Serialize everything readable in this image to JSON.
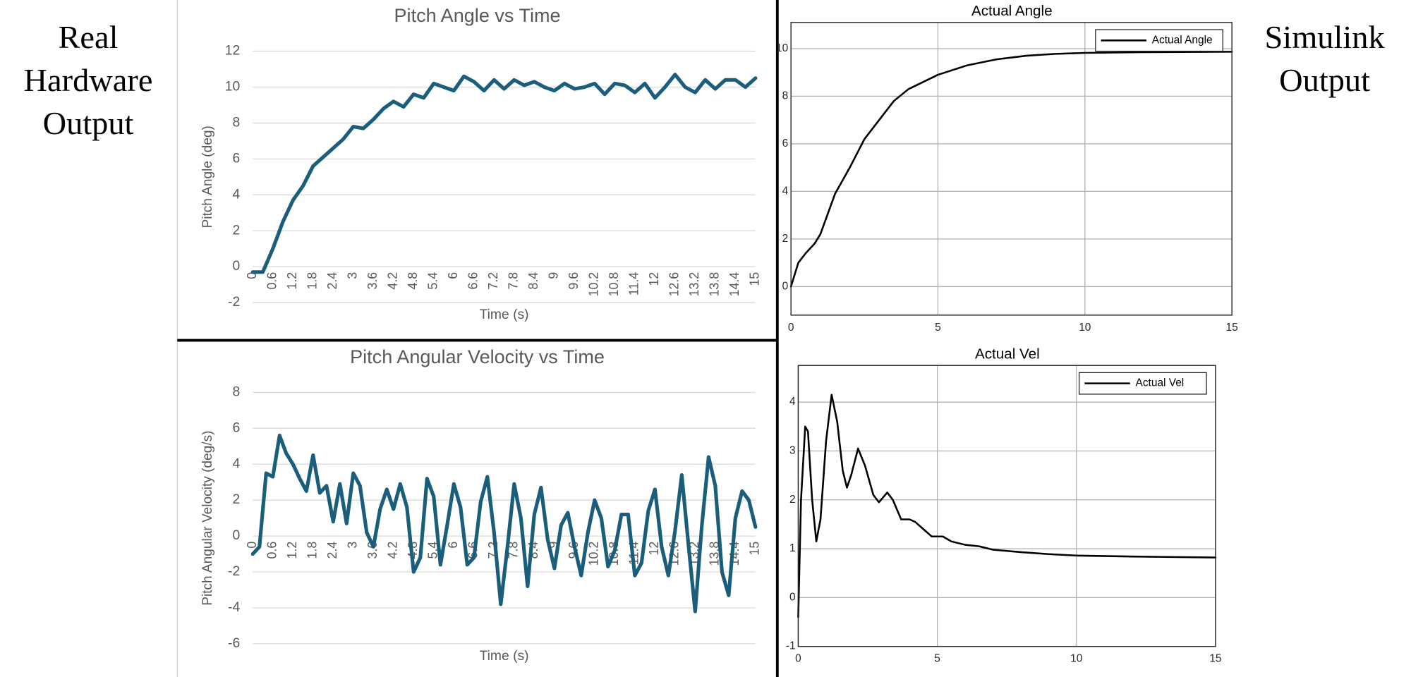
{
  "side_labels": {
    "left": [
      "Real",
      "Hardware",
      "Output"
    ],
    "right": [
      "Simulink",
      "Output"
    ]
  },
  "chart_data": [
    {
      "type": "line",
      "title": "Pitch Angle vs Time",
      "x_label": "Time (s)",
      "y_label": "Pitch Angle (deg)",
      "color": "#1b5e7b",
      "grid": true,
      "xlim": [
        0,
        15
      ],
      "xticks": [
        0,
        0.6,
        1.2,
        1.8,
        2.4,
        3,
        3.6,
        4.2,
        4.8,
        5.4,
        6,
        6.6,
        7.2,
        7.8,
        8.4,
        9,
        9.6,
        10.2,
        10.8,
        11.4,
        12,
        12.6,
        13.2,
        13.8,
        14.4,
        15
      ],
      "ylim": [
        -2,
        12
      ],
      "yticks": [
        -2,
        0,
        2,
        4,
        6,
        8,
        10,
        12
      ],
      "x": [
        0,
        0.3,
        0.6,
        0.9,
        1.2,
        1.5,
        1.8,
        2.1,
        2.4,
        2.7,
        3,
        3.3,
        3.6,
        3.9,
        4.2,
        4.5,
        4.8,
        5.1,
        5.4,
        5.7,
        6,
        6.3,
        6.6,
        6.9,
        7.2,
        7.5,
        7.8,
        8.1,
        8.4,
        8.7,
        9,
        9.3,
        9.6,
        9.9,
        10.2,
        10.5,
        10.8,
        11.1,
        11.4,
        11.7,
        12,
        12.3,
        12.6,
        12.9,
        13.2,
        13.5,
        13.8,
        14.1,
        14.4,
        14.7,
        15
      ],
      "values": [
        -0.3,
        -0.3,
        1.0,
        2.5,
        3.7,
        4.5,
        5.6,
        6.1,
        6.6,
        7.1,
        7.8,
        7.7,
        8.2,
        8.8,
        9.2,
        8.9,
        9.6,
        9.4,
        10.2,
        10.0,
        9.8,
        10.6,
        10.3,
        9.8,
        10.4,
        9.9,
        10.4,
        10.1,
        10.3,
        10.0,
        9.8,
        10.2,
        9.9,
        10.0,
        10.2,
        9.6,
        10.2,
        10.1,
        9.7,
        10.2,
        9.4,
        10.0,
        10.7,
        10.0,
        9.7,
        10.4,
        9.9,
        10.4,
        10.4,
        10.0,
        10.5
      ]
    },
    {
      "type": "line",
      "title": "Pitch Angular Velocity vs Time",
      "x_label": "Time (s)",
      "y_label": "Pitch Angular Velocity (deg/s)",
      "color": "#1b5e7b",
      "grid": true,
      "xlim": [
        0,
        15
      ],
      "xticks": [
        0,
        0.6,
        1.2,
        1.8,
        2.4,
        3,
        3.6,
        4.2,
        4.8,
        5.4,
        6,
        6.6,
        7.2,
        7.8,
        8.4,
        9,
        9.6,
        10.2,
        10.8,
        11.4,
        12,
        12.6,
        13.2,
        13.8,
        14.4,
        15
      ],
      "ylim": [
        -6,
        8
      ],
      "yticks": [
        -6,
        -4,
        -2,
        0,
        2,
        4,
        6,
        8
      ],
      "x": [
        0,
        0.2,
        0.4,
        0.6,
        0.8,
        1,
        1.2,
        1.4,
        1.6,
        1.8,
        2,
        2.2,
        2.4,
        2.6,
        2.8,
        3,
        3.2,
        3.4,
        3.6,
        3.8,
        4,
        4.2,
        4.4,
        4.6,
        4.8,
        5,
        5.2,
        5.4,
        5.6,
        5.8,
        6,
        6.2,
        6.4,
        6.6,
        6.8,
        7,
        7.2,
        7.4,
        7.6,
        7.8,
        8,
        8.2,
        8.4,
        8.6,
        8.8,
        9,
        9.2,
        9.4,
        9.6,
        9.8,
        10,
        10.2,
        10.4,
        10.6,
        10.8,
        11,
        11.2,
        11.4,
        11.6,
        11.8,
        12,
        12.2,
        12.4,
        12.6,
        12.8,
        13,
        13.2,
        13.4,
        13.6,
        13.8,
        14,
        14.2,
        14.4,
        14.6,
        14.8,
        15
      ],
      "values": [
        -1.0,
        -0.6,
        3.5,
        3.3,
        5.6,
        4.6,
        4.0,
        3.2,
        2.5,
        4.5,
        2.4,
        2.8,
        0.8,
        2.9,
        0.7,
        3.5,
        2.8,
        0.2,
        -0.6,
        1.5,
        2.6,
        1.5,
        2.9,
        1.6,
        -2.0,
        -1.2,
        3.2,
        2.2,
        -1.6,
        0.6,
        2.9,
        1.6,
        -1.6,
        -1.2,
        1.9,
        3.3,
        0.2,
        -3.8,
        -0.6,
        2.9,
        1.0,
        -2.8,
        1.2,
        2.7,
        -0.2,
        -1.8,
        0.6,
        1.3,
        -0.6,
        -2.2,
        0.2,
        2.0,
        1.0,
        -1.7,
        -0.8,
        1.2,
        1.2,
        -2.2,
        -1.5,
        1.4,
        2.6,
        -0.6,
        -2.2,
        0.3,
        3.4,
        -0.5,
        -4.2,
        0.6,
        4.4,
        2.8,
        -2.0,
        -3.3,
        1.0,
        2.5,
        2.0,
        0.5
      ]
    },
    {
      "type": "line",
      "title": "Actual Angle",
      "grid": true,
      "legend": "upper right",
      "xlim": [
        0,
        15
      ],
      "xticks": [
        0,
        5,
        10,
        15
      ],
      "ylim": [
        -1.2,
        11.1
      ],
      "yticks": [
        0,
        2,
        4,
        6,
        8,
        10
      ],
      "x": [
        0,
        0.25,
        0.5,
        0.8,
        1,
        1.5,
        2,
        2.5,
        3,
        3.5,
        4,
        5,
        6,
        7,
        8,
        9,
        10,
        12,
        15
      ],
      "series": [
        {
          "name": "Actual Angle",
          "color": "#000000",
          "values": [
            0,
            1.0,
            1.4,
            1.8,
            2.2,
            3.9,
            5.0,
            6.2,
            7.0,
            7.8,
            8.3,
            8.9,
            9.3,
            9.55,
            9.7,
            9.78,
            9.82,
            9.85,
            9.87
          ]
        }
      ]
    },
    {
      "type": "line",
      "title": "Actual Vel",
      "grid": true,
      "legend": "upper right",
      "xlim": [
        0,
        15
      ],
      "xticks": [
        0,
        5,
        10,
        15
      ],
      "ylim": [
        -1,
        4.75
      ],
      "yticks": [
        -1,
        0,
        1,
        2,
        3,
        4
      ],
      "x": [
        0,
        0.1,
        0.25,
        0.35,
        0.5,
        0.65,
        0.8,
        1,
        1.2,
        1.4,
        1.6,
        1.75,
        1.9,
        2.15,
        2.4,
        2.7,
        2.9,
        3.2,
        3.4,
        3.7,
        4,
        4.2,
        4.5,
        4.8,
        5.2,
        5.5,
        6,
        6.5,
        7,
        8,
        9,
        10,
        12,
        15
      ],
      "series": [
        {
          "name": "Actual Vel",
          "color": "#000000",
          "values": [
            -0.4,
            2.0,
            3.5,
            3.4,
            2.0,
            1.15,
            1.6,
            3.2,
            4.15,
            3.6,
            2.6,
            2.25,
            2.5,
            3.05,
            2.7,
            2.1,
            1.95,
            2.15,
            2.0,
            1.6,
            1.6,
            1.55,
            1.4,
            1.25,
            1.25,
            1.15,
            1.08,
            1.05,
            0.98,
            0.93,
            0.89,
            0.86,
            0.84,
            0.82
          ]
        }
      ]
    }
  ]
}
